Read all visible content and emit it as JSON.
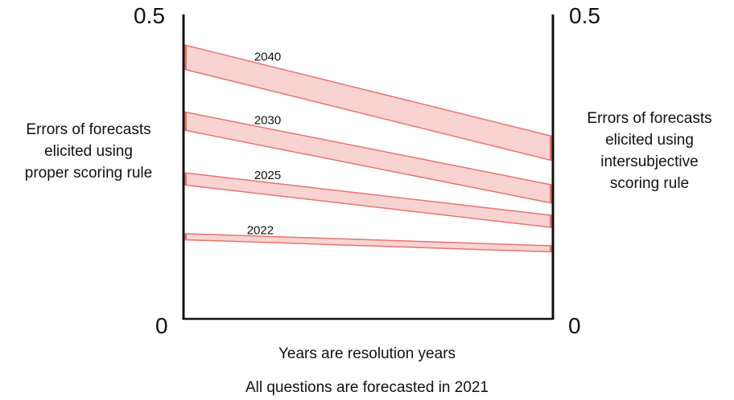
{
  "left_axis": {
    "top_label": "0.5",
    "bottom_label": "0",
    "title_lines": [
      "Errors of forecasts",
      "elicited using",
      "proper scoring rule"
    ]
  },
  "right_axis": {
    "top_label": "0.5",
    "bottom_label": "0",
    "title_lines": [
      "Errors of forecasts",
      "elicited using",
      "intersubjective",
      "scoring rule"
    ]
  },
  "captions": {
    "line1": "Years are resolution years",
    "line2": "All questions are forecasted in 2021"
  },
  "colors": {
    "band_fill": "#f8d3d1",
    "band_stroke": "#e8746c",
    "axis": "#111111"
  },
  "chart_data": {
    "type": "area",
    "axis_range": [
      0,
      0.5
    ],
    "bands": [
      {
        "name": "2040",
        "left": [
          0.41,
          0.45
        ],
        "right": [
          0.26,
          0.3
        ]
      },
      {
        "name": "2030",
        "left": [
          0.31,
          0.34
        ],
        "right": [
          0.19,
          0.22
        ]
      },
      {
        "name": "2025",
        "left": [
          0.22,
          0.24
        ],
        "right": [
          0.15,
          0.17
        ]
      },
      {
        "name": "2022",
        "left": [
          0.13,
          0.14
        ],
        "right": [
          0.11,
          0.12
        ]
      }
    ]
  }
}
